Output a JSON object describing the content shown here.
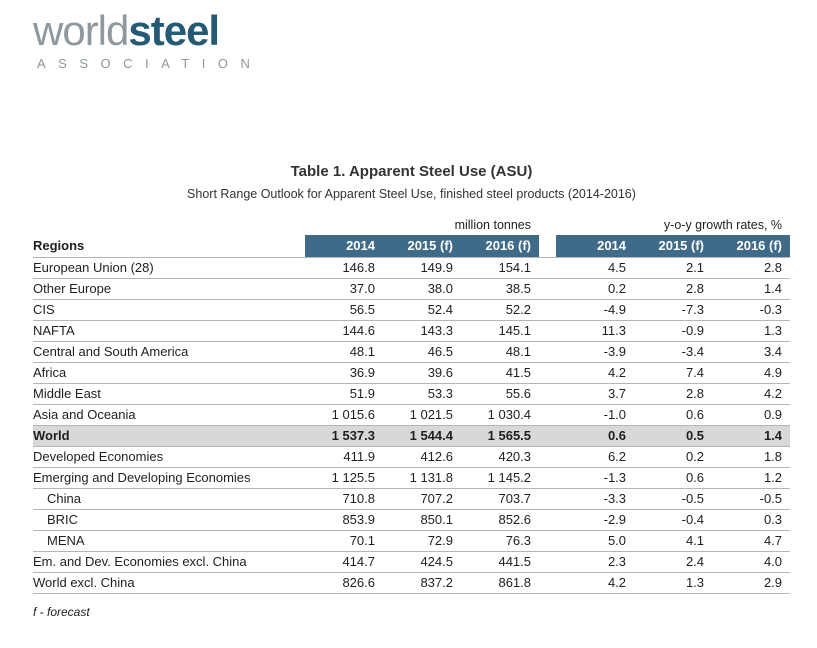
{
  "logo": {
    "part1": "world",
    "part2": "steel",
    "subtitle": "ASSOCIATION"
  },
  "title": "Table 1. Apparent Steel Use (ASU)",
  "subtitle": "Short Range Outlook for Apparent Steel Use, finished steel products (2014-2016)",
  "table": {
    "regions_label": "Regions",
    "group_headers": [
      "million tonnes",
      "y-o-y growth rates, %"
    ],
    "col_headers": [
      "2014",
      "2015 (f)",
      "2016 (f)"
    ],
    "rows": [
      {
        "region": "European Union (28)",
        "tonnes": [
          "146.8",
          "149.9",
          "154.1"
        ],
        "growth": [
          "4.5",
          "2.1",
          "2.8"
        ],
        "bold": false,
        "indent": false
      },
      {
        "region": "Other Europe",
        "tonnes": [
          "37.0",
          "38.0",
          "38.5"
        ],
        "growth": [
          "0.2",
          "2.8",
          "1.4"
        ],
        "bold": false,
        "indent": false
      },
      {
        "region": "CIS",
        "tonnes": [
          "56.5",
          "52.4",
          "52.2"
        ],
        "growth": [
          "-4.9",
          "-7.3",
          "-0.3"
        ],
        "bold": false,
        "indent": false
      },
      {
        "region": "NAFTA",
        "tonnes": [
          "144.6",
          "143.3",
          "145.1"
        ],
        "growth": [
          "11.3",
          "-0.9",
          "1.3"
        ],
        "bold": false,
        "indent": false
      },
      {
        "region": "Central and South America",
        "tonnes": [
          "48.1",
          "46.5",
          "48.1"
        ],
        "growth": [
          "-3.9",
          "-3.4",
          "3.4"
        ],
        "bold": false,
        "indent": false
      },
      {
        "region": "Africa",
        "tonnes": [
          "36.9",
          "39.6",
          "41.5"
        ],
        "growth": [
          "4.2",
          "7.4",
          "4.9"
        ],
        "bold": false,
        "indent": false
      },
      {
        "region": "Middle East",
        "tonnes": [
          "51.9",
          "53.3",
          "55.6"
        ],
        "growth": [
          "3.7",
          "2.8",
          "4.2"
        ],
        "bold": false,
        "indent": false
      },
      {
        "region": "Asia and Oceania",
        "tonnes": [
          "1 015.6",
          "1 021.5",
          "1 030.4"
        ],
        "growth": [
          "-1.0",
          "0.6",
          "0.9"
        ],
        "bold": false,
        "indent": false
      },
      {
        "region": "World",
        "tonnes": [
          "1 537.3",
          "1 544.4",
          "1 565.5"
        ],
        "growth": [
          "0.6",
          "0.5",
          "1.4"
        ],
        "bold": true,
        "indent": false
      },
      {
        "region": "Developed Economies",
        "tonnes": [
          "411.9",
          "412.6",
          "420.3"
        ],
        "growth": [
          "6.2",
          "0.2",
          "1.8"
        ],
        "bold": false,
        "indent": false
      },
      {
        "region": "Emerging and Developing Economies",
        "tonnes": [
          "1 125.5",
          "1 131.8",
          "1 145.2"
        ],
        "growth": [
          "-1.3",
          "0.6",
          "1.2"
        ],
        "bold": false,
        "indent": false
      },
      {
        "region": "China",
        "tonnes": [
          "710.8",
          "707.2",
          "703.7"
        ],
        "growth": [
          "-3.3",
          "-0.5",
          "-0.5"
        ],
        "bold": false,
        "indent": true
      },
      {
        "region": "BRIC",
        "tonnes": [
          "853.9",
          "850.1",
          "852.6"
        ],
        "growth": [
          "-2.9",
          "-0.4",
          "0.3"
        ],
        "bold": false,
        "indent": true
      },
      {
        "region": "MENA",
        "tonnes": [
          "70.1",
          "72.9",
          "76.3"
        ],
        "growth": [
          "5.0",
          "4.1",
          "4.7"
        ],
        "bold": false,
        "indent": true
      },
      {
        "region": "Em. and Dev. Economies excl. China",
        "tonnes": [
          "414.7",
          "424.5",
          "441.5"
        ],
        "growth": [
          "2.3",
          "2.4",
          "4.0"
        ],
        "bold": false,
        "indent": false
      },
      {
        "region": "World excl. China",
        "tonnes": [
          "826.6",
          "837.2",
          "861.8"
        ],
        "growth": [
          "4.2",
          "1.3",
          "2.9"
        ],
        "bold": false,
        "indent": false
      }
    ]
  },
  "footnote": "f - forecast",
  "colors": {
    "header_bg": "#3f6b88",
    "world_row_bg": "#d8d8d8",
    "logo_gray": "#8e989e",
    "logo_blue": "#255a74"
  }
}
